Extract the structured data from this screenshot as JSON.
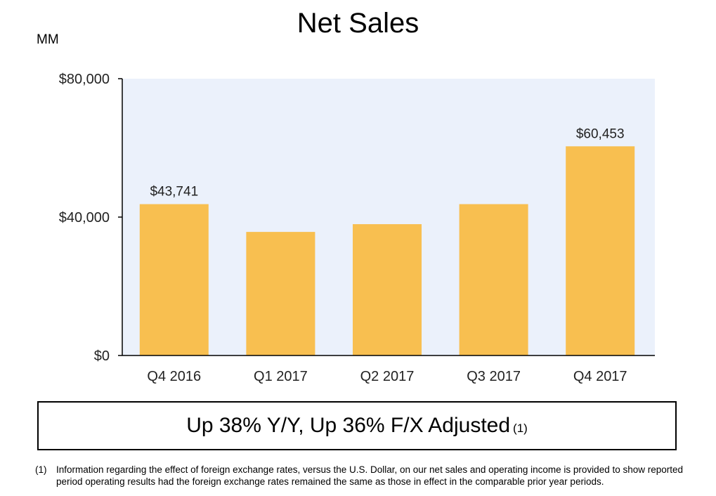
{
  "slide": {
    "title": "Net Sales",
    "unit": "MM",
    "callout_text": "Up 38% Y/Y, Up 36% F/X Adjusted",
    "callout_ref": "(1)",
    "footnote_marker": "(1)",
    "footnote_text": "Information regarding the effect of foreign exchange rates, versus the U.S. Dollar, on our net sales and operating income is provided to show reported period operating results had the foreign exchange rates remained the same as those in effect in the comparable prior year periods."
  },
  "chart_data": {
    "type": "bar",
    "title": "Net Sales",
    "ylabel": "MM",
    "xlabel": "",
    "categories": [
      "Q4 2016",
      "Q1 2017",
      "Q2 2017",
      "Q3 2017",
      "Q4 2017"
    ],
    "values": [
      43741,
      35714,
      37955,
      43744,
      60453
    ],
    "data_labels": [
      "$43,741",
      "",
      "",
      "",
      "$60,453"
    ],
    "ylim": [
      0,
      80000
    ],
    "yticks": [
      0,
      40000,
      80000
    ],
    "ytick_labels": [
      "$0",
      "$40,000",
      "$80,000"
    ],
    "grid": false,
    "legend": "none",
    "colors": {
      "bar": "#F8BF50",
      "plot_background": "#EBF1FB",
      "axis": "#000000"
    }
  }
}
